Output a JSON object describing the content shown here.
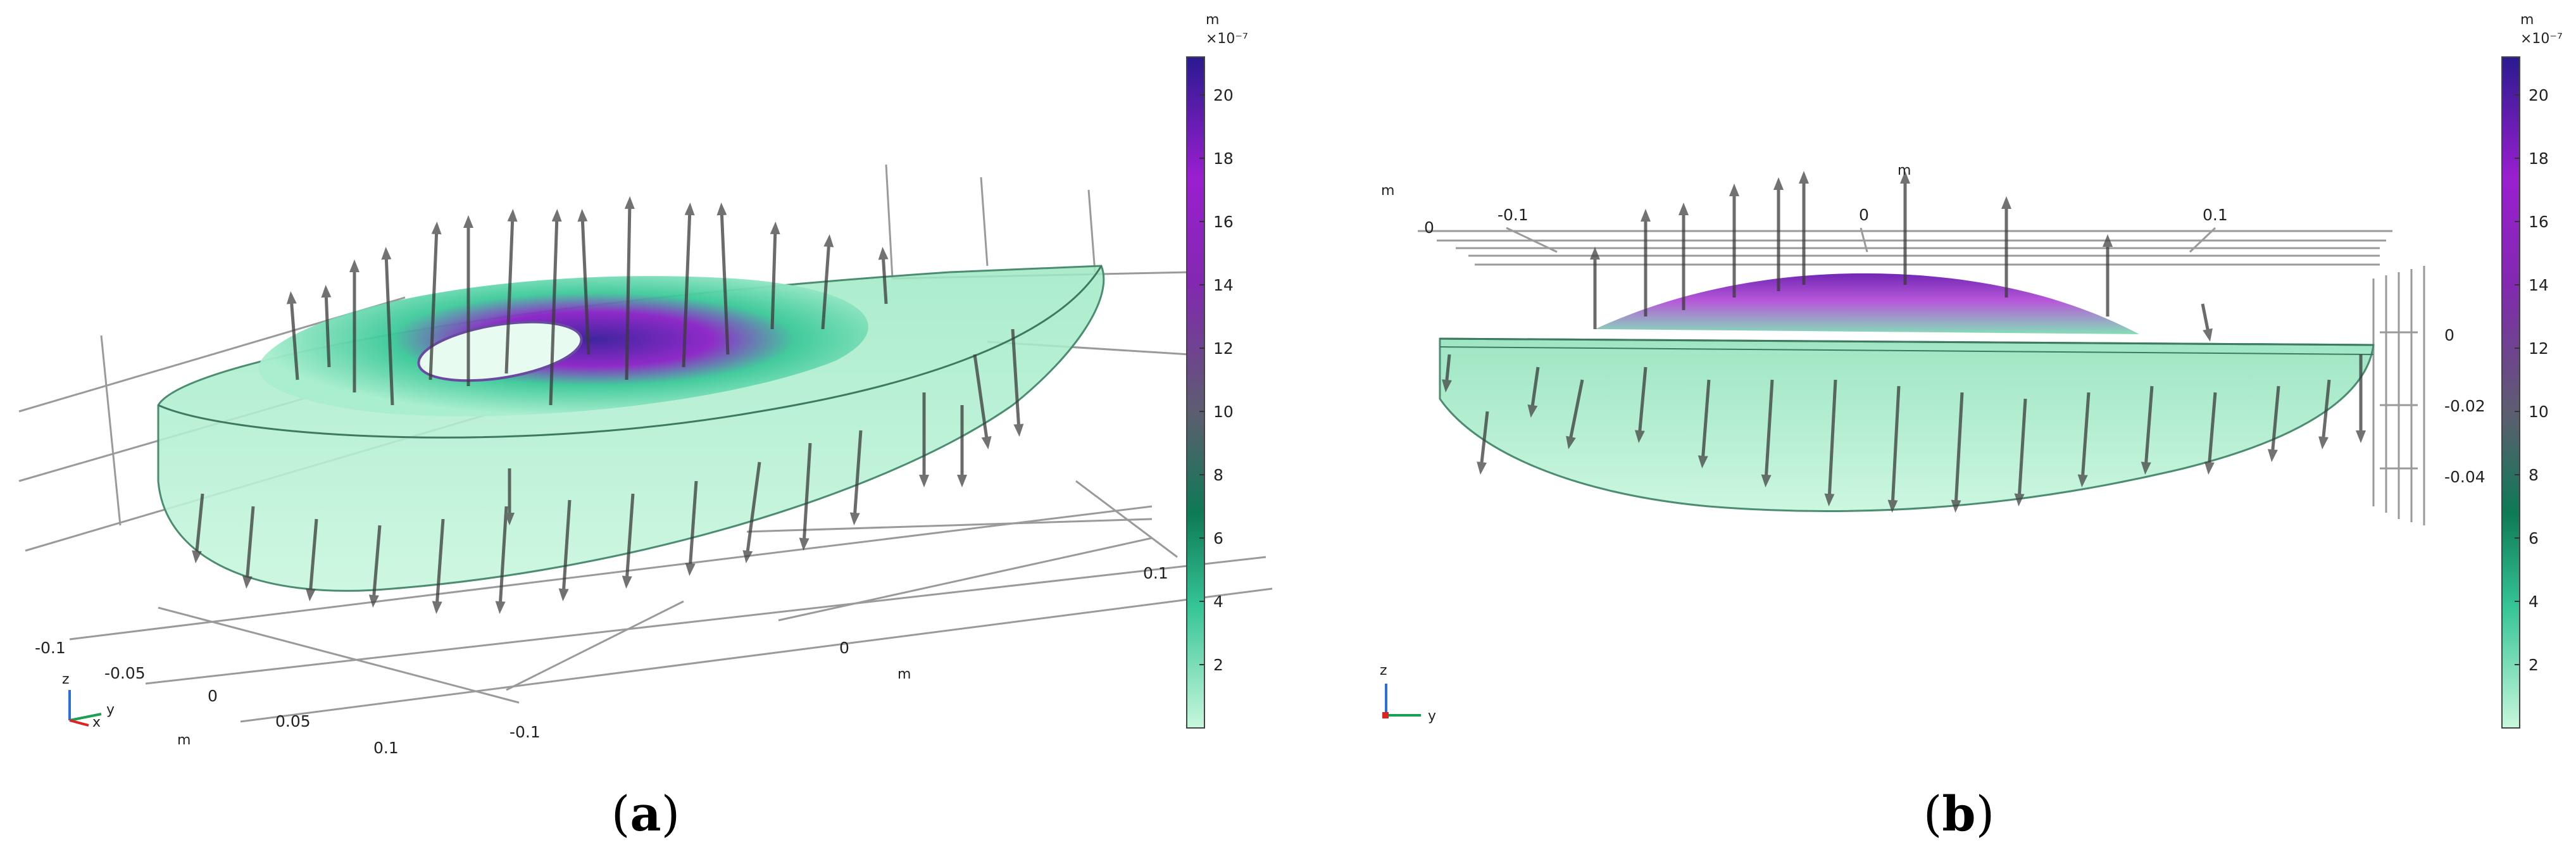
{
  "panels": [
    {
      "id": "a",
      "caption_letter": "a",
      "colorbar": {
        "unit": "m",
        "exponent": "×10⁻⁷",
        "ticks": [
          "20",
          "18",
          "16",
          "14",
          "12",
          "10",
          "8",
          "6",
          "4",
          "2"
        ],
        "max_value": 21.2,
        "min_value": 0,
        "colors": [
          "#c8f7dc",
          "#35c596",
          "#0d7a56",
          "#5d5d70",
          "#8229b0",
          "#9a1fd0",
          "#2a1a8f"
        ]
      },
      "axes": {
        "x_ticks": [
          "-0.1",
          "-0.05",
          "0",
          "0.05",
          "0.1"
        ],
        "y_ticks": [
          "-0.1",
          "0",
          "0.1"
        ],
        "unit_labels": [
          "m",
          "m"
        ]
      },
      "triad": [
        "z",
        "y",
        "x"
      ]
    },
    {
      "id": "b",
      "caption_letter": "b",
      "colorbar": {
        "unit": "m",
        "exponent": "×10⁻⁷",
        "ticks": [
          "20",
          "18",
          "16",
          "14",
          "12",
          "10",
          "8",
          "6",
          "4",
          "2"
        ],
        "max_value": 21.2,
        "min_value": 0,
        "colors": [
          "#c8f7dc",
          "#35c596",
          "#0d7a56",
          "#5d5d70",
          "#8229b0",
          "#9a1fd0",
          "#2a1a8f"
        ]
      },
      "axes": {
        "top_ticks": [
          "-0.1",
          "0",
          "0.1"
        ],
        "top_left": "0",
        "side_ticks": [
          "0",
          "-0.02",
          "-0.04"
        ],
        "unit_labels": [
          "m",
          "m"
        ]
      },
      "triad": [
        "z",
        "y"
      ]
    }
  ]
}
